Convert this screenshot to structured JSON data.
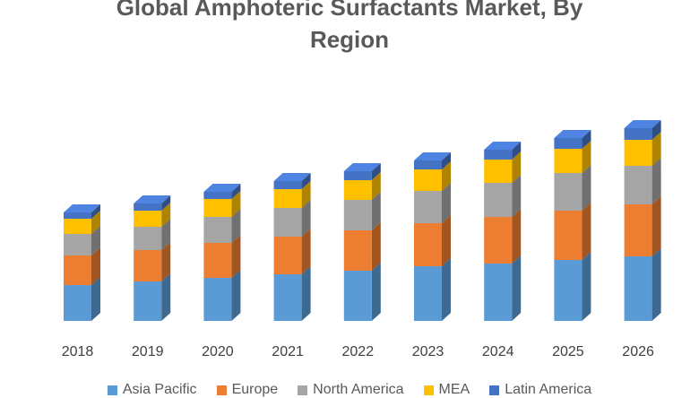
{
  "chart_data": {
    "type": "bar",
    "stacked": true,
    "three_d": true,
    "title": "Global Amphoteric Surfactants Market, By Region",
    "title_lines": [
      "Global Amphoteric Surfactants Market, By",
      "Region"
    ],
    "xlabel": "",
    "ylabel": "",
    "categories": [
      "2018",
      "2019",
      "2020",
      "2021",
      "2022",
      "2023",
      "2024",
      "2025",
      "2026"
    ],
    "series": [
      {
        "name": "Asia Pacific",
        "color": "#5B9BD5",
        "values": [
          40,
          44,
          48,
          52,
          56,
          61,
          64,
          68,
          72
        ]
      },
      {
        "name": "Europe",
        "color": "#ED7D31",
        "values": [
          33,
          35,
          39,
          42,
          45,
          48,
          52,
          55,
          58
        ]
      },
      {
        "name": "North America",
        "color": "#A5A5A5",
        "values": [
          24,
          26,
          29,
          32,
          34,
          36,
          38,
          42,
          43
        ]
      },
      {
        "name": "MEA",
        "color": "#FFC000",
        "values": [
          17,
          18,
          20,
          21,
          22,
          24,
          26,
          27,
          29
        ]
      },
      {
        "name": "Latin America",
        "color": "#4472C4",
        "values": [
          7,
          8,
          8,
          9,
          10,
          10,
          11,
          12,
          13
        ]
      }
    ],
    "ylim": [
      0,
      240
    ],
    "grid": false,
    "legend_position": "bottom"
  }
}
